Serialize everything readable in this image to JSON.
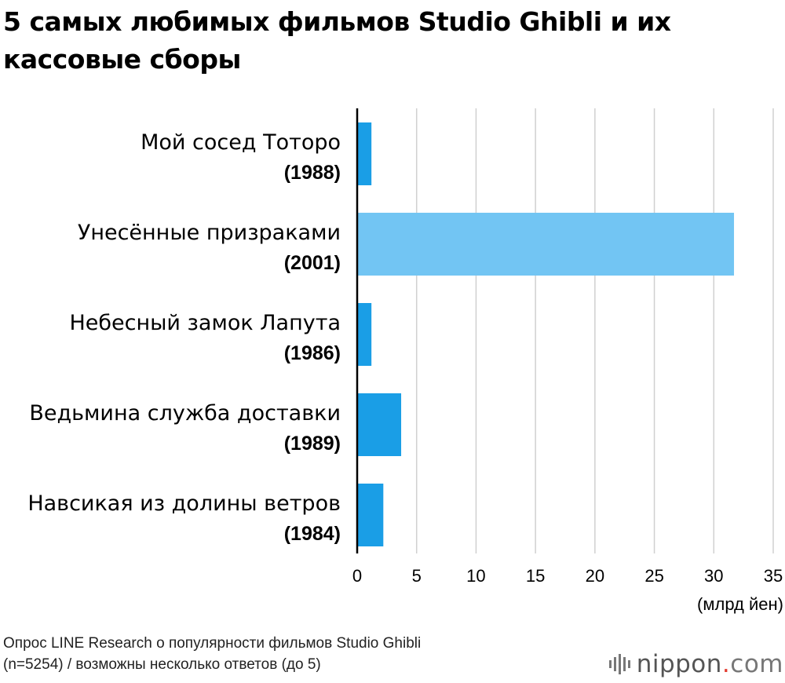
{
  "title": "5 самых любимых фильмов Studio Ghibli и их кассовые сборы",
  "source": {
    "line1": "Опрос LINE Research о популярности фильмов Studio Ghibli",
    "line2": "(n=5254) / возможны несколько ответов (до 5)"
  },
  "logo": {
    "name": "nippon",
    "dot": ".",
    "tld": "com"
  },
  "colors": {
    "bar": "#1a9ee6",
    "highlight": "#72c5f3",
    "grid": "#d0d0d0",
    "axis": "#000000"
  },
  "chart_data": {
    "type": "bar",
    "orientation": "horizontal",
    "categories": [
      {
        "name": "Мой сосед Тоторо",
        "year": "(1988)"
      },
      {
        "name": "Унесённые призраками",
        "year": "(2001)"
      },
      {
        "name": "Небесный замок Лапута",
        "year": "(1986)"
      },
      {
        "name": "Ведьмина служба доставки",
        "year": "(1989)"
      },
      {
        "name": "Навсикая из долины ветров",
        "year": "(1984)"
      }
    ],
    "values": [
      1.2,
      31.7,
      1.2,
      3.7,
      2.2
    ],
    "highlight_index": 1,
    "xlim": [
      0,
      35
    ],
    "xticks": [
      0,
      5,
      10,
      15,
      20,
      25,
      30,
      35
    ],
    "xlabel": "(млрд йен)",
    "grid": true
  }
}
